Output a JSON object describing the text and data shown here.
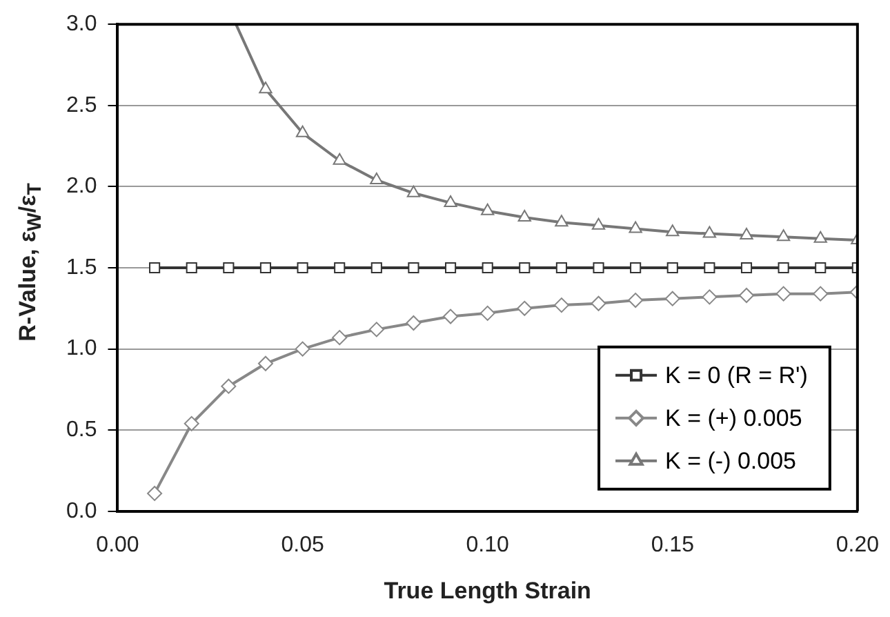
{
  "chart_data": {
    "type": "line",
    "xlabel": "True Length Strain",
    "ylabel": "R-Value, ε$_{W}$/ε$_{T}$",
    "x": [
      0.01,
      0.02,
      0.03,
      0.04,
      0.05,
      0.06,
      0.07,
      0.08,
      0.09,
      0.1,
      0.11,
      0.12,
      0.13,
      0.14,
      0.15,
      0.16,
      0.17,
      0.18,
      0.19,
      0.2
    ],
    "series": [
      {
        "name": "K = 0 (R = R')",
        "color": "#333333",
        "marker": "square",
        "values": [
          1.5,
          1.5,
          1.5,
          1.5,
          1.5,
          1.5,
          1.5,
          1.5,
          1.5,
          1.5,
          1.5,
          1.5,
          1.5,
          1.5,
          1.5,
          1.5,
          1.5,
          1.5,
          1.5,
          1.5
        ]
      },
      {
        "name": "K = (+) 0.005",
        "color": "#888888",
        "marker": "diamond",
        "values": [
          0.11,
          0.54,
          0.77,
          0.91,
          1.0,
          1.07,
          1.12,
          1.16,
          1.2,
          1.22,
          1.25,
          1.27,
          1.28,
          1.3,
          1.31,
          1.32,
          1.33,
          1.34,
          1.34,
          1.35
        ]
      },
      {
        "name": "K = (-) 0.005",
        "color": "#777777",
        "marker": "triangle",
        "x": [
          0.032,
          0.04,
          0.05,
          0.06,
          0.07,
          0.08,
          0.09,
          0.1,
          0.11,
          0.12,
          0.13,
          0.14,
          0.15,
          0.16,
          0.17,
          0.18,
          0.19,
          0.2
        ],
        "values": [
          3.0,
          2.6,
          2.33,
          2.16,
          2.04,
          1.96,
          1.9,
          1.85,
          1.81,
          1.78,
          1.76,
          1.74,
          1.72,
          1.71,
          1.7,
          1.69,
          1.68,
          1.67
        ]
      }
    ],
    "xlim": [
      0,
      0.2
    ],
    "xticks": [
      {
        "value": 0,
        "label": "0.00"
      },
      {
        "value": 0.05,
        "label": "0.05"
      },
      {
        "value": 0.1,
        "label": "0.10"
      },
      {
        "value": 0.15,
        "label": "0.15"
      },
      {
        "value": 0.2,
        "label": "0.20"
      }
    ],
    "ylim": [
      0,
      3
    ],
    "yticks": [
      {
        "value": 0,
        "label": "0.0"
      },
      {
        "value": 0.5,
        "label": "0.5"
      },
      {
        "value": 1,
        "label": "1.0"
      },
      {
        "value": 1.5,
        "label": "1.5"
      },
      {
        "value": 2,
        "label": "2.0"
      },
      {
        "value": 2.5,
        "label": "2.5"
      },
      {
        "value": 3,
        "label": "3.0"
      }
    ],
    "grid": "y",
    "legend": "bottom right",
    "line_style": "solid"
  }
}
